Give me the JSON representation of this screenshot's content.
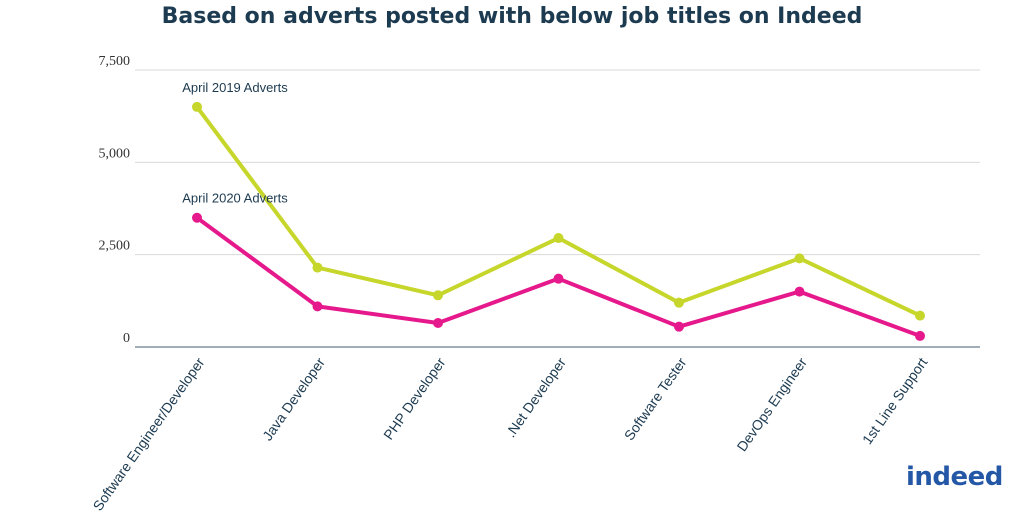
{
  "chart_data": {
    "type": "line",
    "title": "Based on adverts posted with below job titles on Indeed",
    "categories": [
      "Software Engineer/Developer",
      "Java Developer",
      "PHP Developer",
      ".Net Developer",
      "Software Tester",
      "DevOps Engineer",
      "1st Line Support"
    ],
    "y_ticks": [
      "0",
      "2,500",
      "5,000",
      "7,500"
    ],
    "y_tick_values": [
      0,
      2500,
      5000,
      7500
    ],
    "ylim": [
      0,
      7500
    ],
    "grid": true,
    "series": [
      {
        "name": "April 2019 Adverts",
        "color": "#c6d62b",
        "values": [
          6500,
          2150,
          1400,
          2950,
          1200,
          2400,
          850
        ]
      },
      {
        "name": "April 2020 Adverts",
        "color": "#e6198c",
        "values": [
          3500,
          1100,
          650,
          1850,
          550,
          1500,
          300
        ]
      }
    ]
  },
  "logo": {
    "text": "indeed"
  }
}
